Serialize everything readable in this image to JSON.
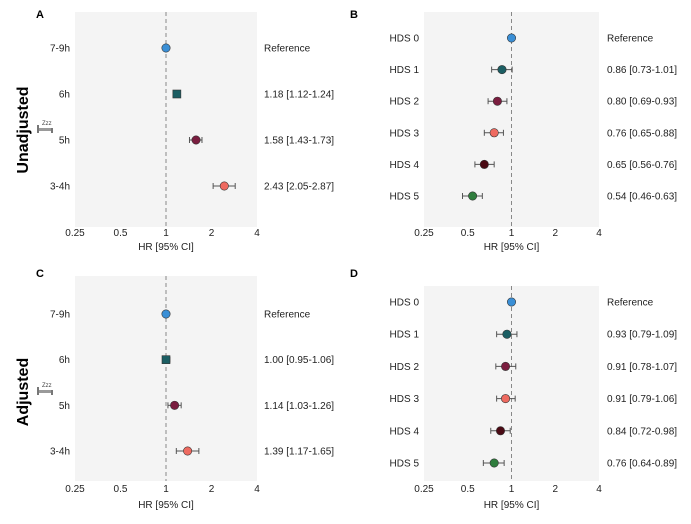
{
  "row_titles": [
    "Unadjusted",
    "Adjusted"
  ],
  "colors": {
    "blue": "#3a8fd6",
    "teal": "#1b5e63",
    "maroon": "#7a1d3f",
    "salmon": "#ee6a60",
    "darkred": "#4a0a14",
    "green": "#2f7d3d",
    "background": "#f4f4f4",
    "refline": "#888888"
  },
  "sleep_icon": "sleep-bed-icon",
  "sleep_icon_text": "Zzz",
  "chart_data": [
    {
      "type": "forest",
      "panel": "A",
      "xscale": "log2",
      "xlim": [
        0.25,
        4
      ],
      "xticks": [
        "0.25",
        "0.5",
        "1",
        "2",
        "4"
      ],
      "xlabel": "HR [95% CI]",
      "reference_line": 1,
      "rows": [
        {
          "label": "7-9h",
          "hr": 1.0,
          "lo": null,
          "hi": null,
          "text": "Reference",
          "color": "#3a8fd6",
          "shape": "circle"
        },
        {
          "label": "6h",
          "hr": 1.18,
          "lo": 1.12,
          "hi": 1.24,
          "text": "1.18 [1.12-1.24]",
          "color": "#1b5e63",
          "shape": "square"
        },
        {
          "label": "5h",
          "hr": 1.58,
          "lo": 1.43,
          "hi": 1.73,
          "text": "1.58 [1.43-1.73]",
          "color": "#7a1d3f",
          "shape": "circle"
        },
        {
          "label": "3-4h",
          "hr": 2.43,
          "lo": 2.05,
          "hi": 2.87,
          "text": "2.43 [2.05-2.87]",
          "color": "#ee6a60",
          "shape": "circle"
        }
      ]
    },
    {
      "type": "forest",
      "panel": "B",
      "xscale": "log2",
      "xlim": [
        0.25,
        4
      ],
      "xticks": [
        "0.25",
        "0.5",
        "1",
        "2",
        "4"
      ],
      "xlabel": "HR [95% CI]",
      "reference_line": 1,
      "rows": [
        {
          "label": "HDS 0",
          "hr": 1.0,
          "lo": null,
          "hi": null,
          "text": "Reference",
          "color": "#3a8fd6",
          "shape": "circle"
        },
        {
          "label": "HDS 1",
          "hr": 0.86,
          "lo": 0.73,
          "hi": 1.01,
          "text": "0.86 [0.73-1.01]",
          "color": "#1b5e63",
          "shape": "circle"
        },
        {
          "label": "HDS 2",
          "hr": 0.8,
          "lo": 0.69,
          "hi": 0.93,
          "text": "0.80 [0.69-0.93]",
          "color": "#7a1d3f",
          "shape": "circle"
        },
        {
          "label": "HDS 3",
          "hr": 0.76,
          "lo": 0.65,
          "hi": 0.88,
          "text": "0.76 [0.65-0.88]",
          "color": "#ee6a60",
          "shape": "circle"
        },
        {
          "label": "HDS 4",
          "hr": 0.65,
          "lo": 0.56,
          "hi": 0.76,
          "text": "0.65 [0.56-0.76]",
          "color": "#4a0a14",
          "shape": "circle"
        },
        {
          "label": "HDS 5",
          "hr": 0.54,
          "lo": 0.46,
          "hi": 0.63,
          "text": "0.54 [0.46-0.63]",
          "color": "#2f7d3d",
          "shape": "circle"
        }
      ]
    },
    {
      "type": "forest",
      "panel": "C",
      "xscale": "log2",
      "xlim": [
        0.25,
        4
      ],
      "xticks": [
        "0.25",
        "0.5",
        "1",
        "2",
        "4"
      ],
      "xlabel": "HR [95% CI]",
      "reference_line": 1,
      "rows": [
        {
          "label": "7-9h",
          "hr": 1.0,
          "lo": null,
          "hi": null,
          "text": "Reference",
          "color": "#3a8fd6",
          "shape": "circle"
        },
        {
          "label": "6h",
          "hr": 1.0,
          "lo": 0.95,
          "hi": 1.06,
          "text": "1.00 [0.95-1.06]",
          "color": "#1b5e63",
          "shape": "square"
        },
        {
          "label": "5h",
          "hr": 1.14,
          "lo": 1.03,
          "hi": 1.26,
          "text": "1.14 [1.03-1.26]",
          "color": "#7a1d3f",
          "shape": "circle"
        },
        {
          "label": "3-4h",
          "hr": 1.39,
          "lo": 1.17,
          "hi": 1.65,
          "text": "1.39 [1.17-1.65]",
          "color": "#ee6a60",
          "shape": "circle"
        }
      ]
    },
    {
      "type": "forest",
      "panel": "D",
      "xscale": "log2",
      "xlim": [
        0.25,
        4
      ],
      "xticks": [
        "0.25",
        "0.5",
        "1",
        "2",
        "4"
      ],
      "xlabel": "HR [95% CI]",
      "reference_line": 1,
      "rows": [
        {
          "label": "HDS 0",
          "hr": 1.0,
          "lo": null,
          "hi": null,
          "text": "Reference",
          "color": "#3a8fd6",
          "shape": "circle"
        },
        {
          "label": "HDS 1",
          "hr": 0.93,
          "lo": 0.79,
          "hi": 1.09,
          "text": "0.93 [0.79-1.09]",
          "color": "#1b5e63",
          "shape": "circle"
        },
        {
          "label": "HDS 2",
          "hr": 0.91,
          "lo": 0.78,
          "hi": 1.07,
          "text": "0.91 [0.78-1.07]",
          "color": "#7a1d3f",
          "shape": "circle"
        },
        {
          "label": "HDS 3",
          "hr": 0.91,
          "lo": 0.79,
          "hi": 1.06,
          "text": "0.91 [0.79-1.06]",
          "color": "#ee6a60",
          "shape": "circle"
        },
        {
          "label": "HDS 4",
          "hr": 0.84,
          "lo": 0.72,
          "hi": 0.98,
          "text": "0.84 [0.72-0.98]",
          "color": "#4a0a14",
          "shape": "circle"
        },
        {
          "label": "HDS 5",
          "hr": 0.76,
          "lo": 0.64,
          "hi": 0.89,
          "text": "0.76 [0.64-0.89]",
          "color": "#2f7d3d",
          "shape": "circle"
        }
      ]
    }
  ]
}
